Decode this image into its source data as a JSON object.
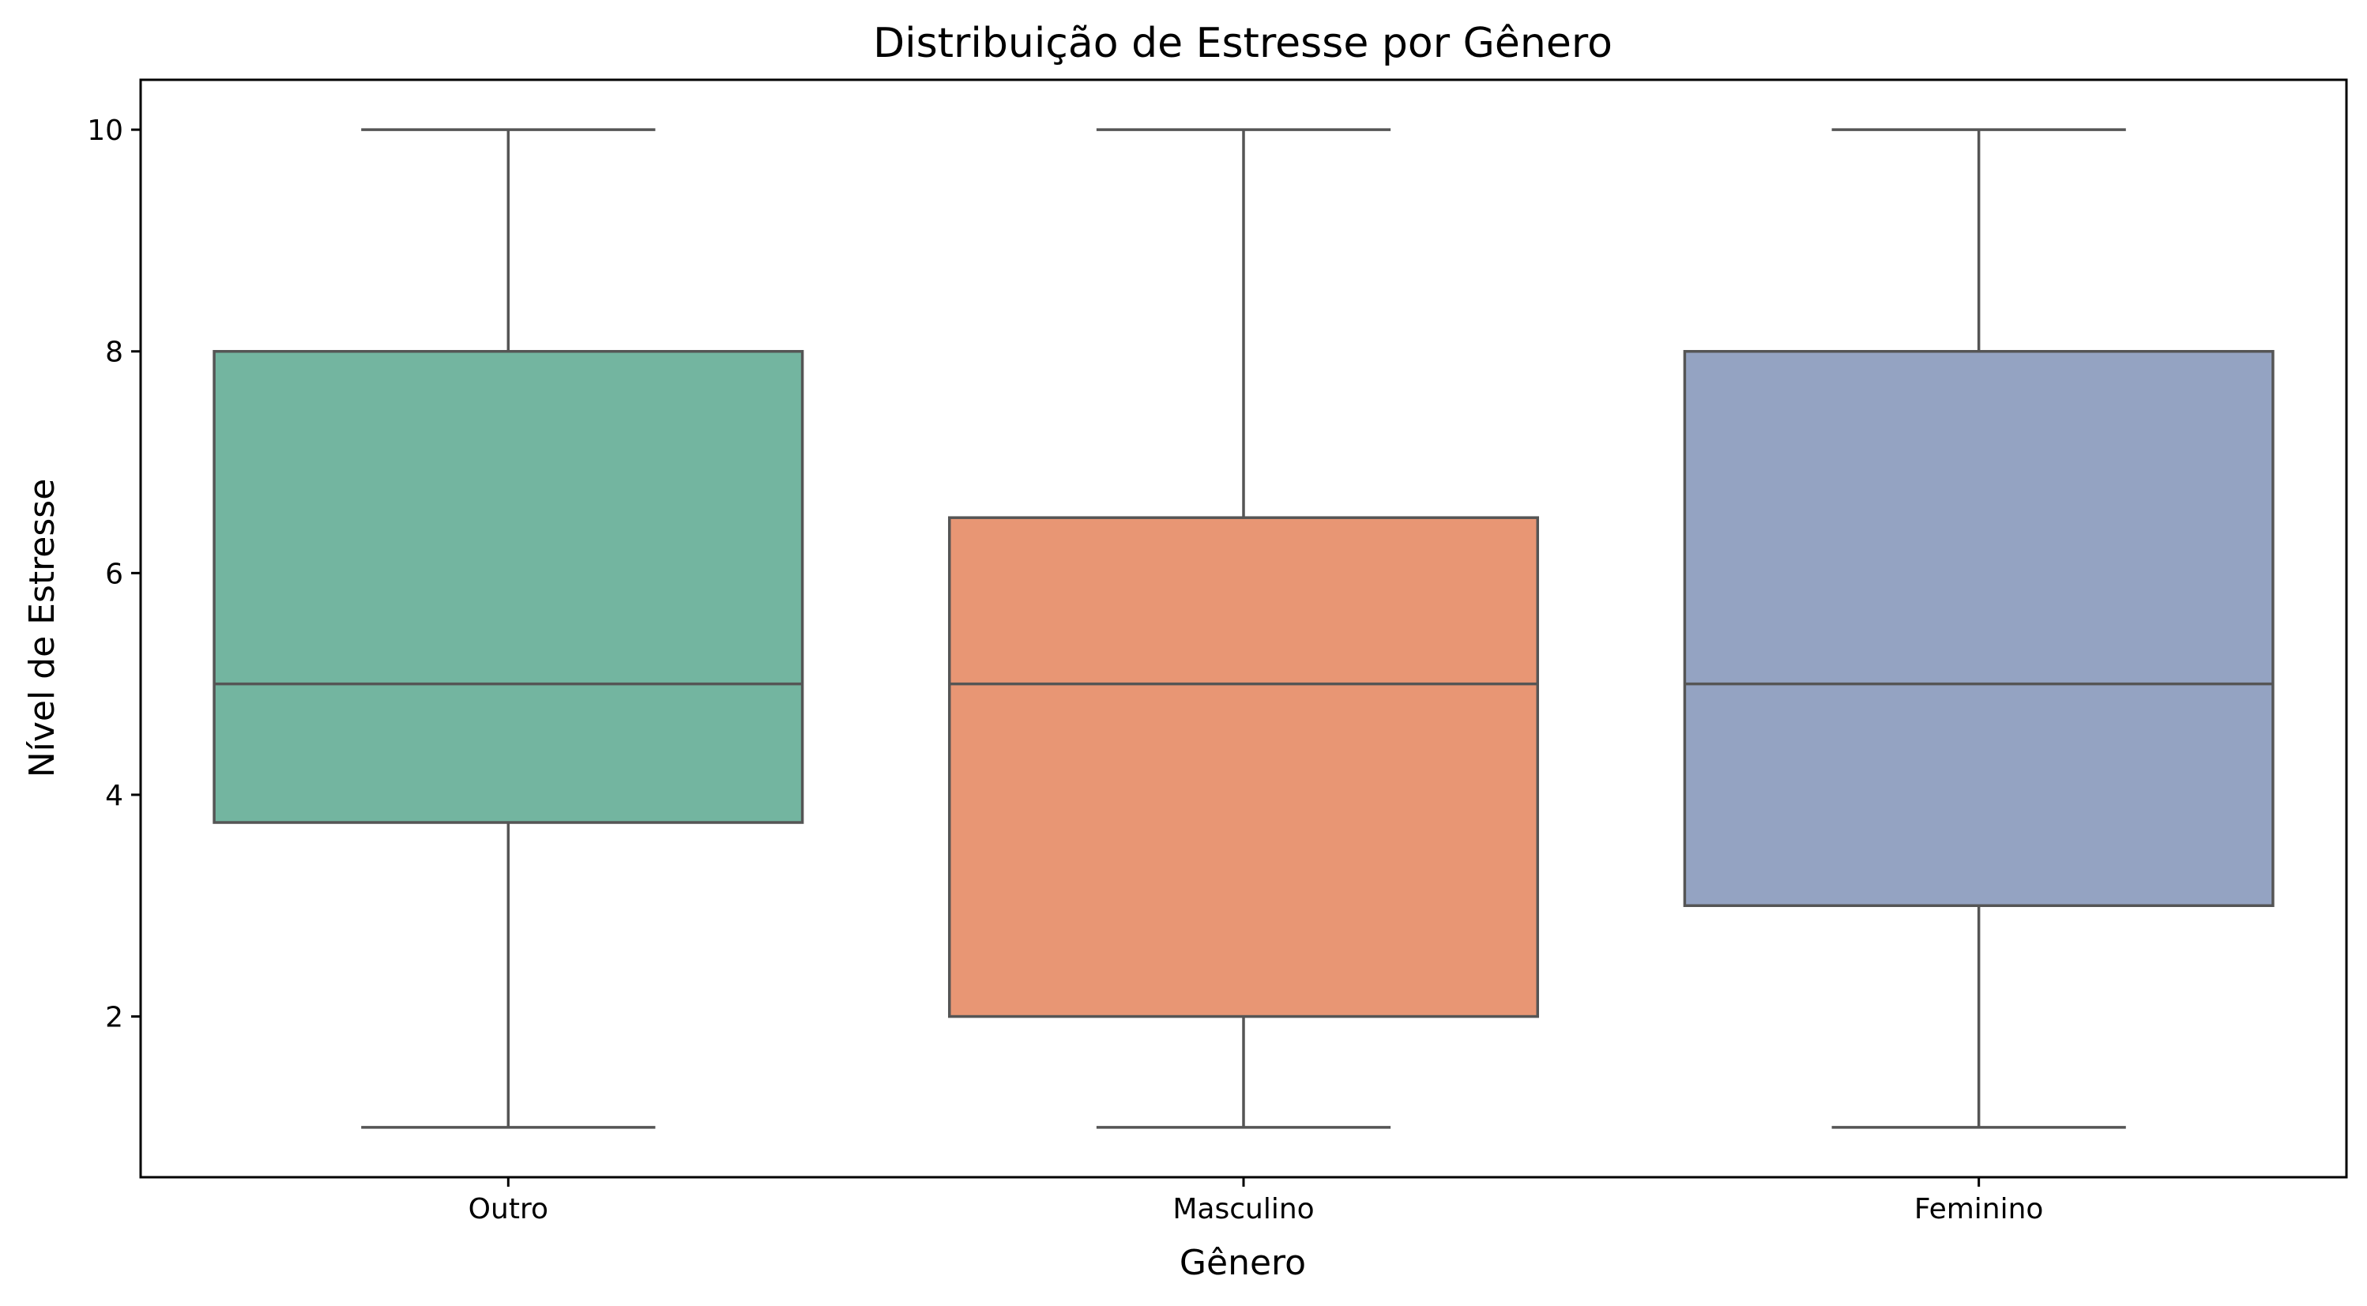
{
  "chart_data": {
    "type": "box",
    "title": "Distribuição de Estresse por Gênero",
    "xlabel": "Gênero",
    "ylabel": "Nível de Estresse",
    "ylim": [
      0.55,
      10.45
    ],
    "yticks": [
      2,
      4,
      6,
      8,
      10
    ],
    "grid": false,
    "categories": [
      "Outro",
      "Masculino",
      "Feminino"
    ],
    "boxes": [
      {
        "category": "Outro",
        "whisker_low": 1,
        "q1": 3.75,
        "median": 5,
        "q3": 8,
        "whisker_high": 10,
        "color": "#73b5a0"
      },
      {
        "category": "Masculino",
        "whisker_low": 1,
        "q1": 2,
        "median": 5,
        "q3": 6.5,
        "whisker_high": 10,
        "color": "#e89674"
      },
      {
        "category": "Feminino",
        "whisker_low": 1,
        "q1": 3,
        "median": 5,
        "q3": 8,
        "whisker_high": 10,
        "color": "#94a3c2"
      }
    ]
  }
}
